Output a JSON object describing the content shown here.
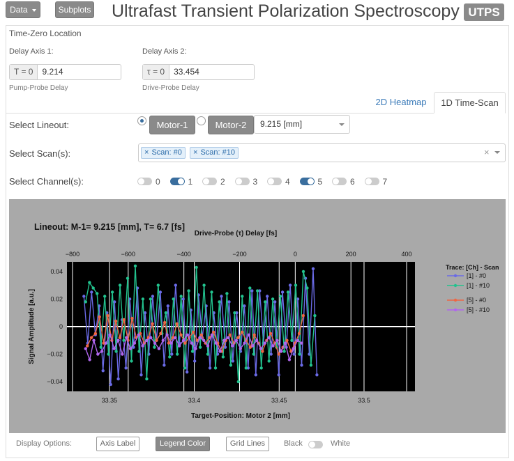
{
  "header": {
    "data_btn": "Data",
    "subplots_btn": "Subplots",
    "title": "Ultrafast Transient Polarization Spectroscopy",
    "badge": "UTPS"
  },
  "timezero": {
    "heading": "Time-Zero Location",
    "axis1": {
      "label": "Delay Axis 1:",
      "addon": "T = 0",
      "value": "9.214",
      "help": "Pump-Probe Delay"
    },
    "axis2": {
      "label": "Delay Axis 2:",
      "addon": "τ = 0",
      "value": "33.454",
      "help": "Drive-Probe Delay"
    }
  },
  "tabs": [
    {
      "label": "2D Heatmap",
      "active": false
    },
    {
      "label": "1D Time-Scan",
      "active": true
    }
  ],
  "lineout": {
    "label": "Select Lineout:",
    "motor1": "Motor-1",
    "motor2": "Motor-2",
    "selected_motor": 1,
    "position": "9.215 [mm]"
  },
  "scans": {
    "label": "Select Scan(s):",
    "tags": [
      "Scan: #0",
      "Scan: #10"
    ],
    "clear_symbol": "×"
  },
  "channels": {
    "label": "Select Channel(s):",
    "items": [
      {
        "n": "0",
        "on": false
      },
      {
        "n": "1",
        "on": true
      },
      {
        "n": "2",
        "on": false
      },
      {
        "n": "3",
        "on": false
      },
      {
        "n": "4",
        "on": false
      },
      {
        "n": "5",
        "on": true
      },
      {
        "n": "6",
        "on": false
      },
      {
        "n": "7",
        "on": false
      }
    ]
  },
  "display": {
    "label": "Display Options:",
    "axis_label": "Axis Label",
    "legend_color": "Legend Color",
    "grid_lines": "Grid Lines",
    "black": "Black",
    "white": "White"
  },
  "colors": {
    "ch1_scan0": "#6a6ae6",
    "ch1_scan10": "#22c28e",
    "ch5_scan0": "#ee6644",
    "ch5_scan10": "#b066ee"
  },
  "chart_data": {
    "type": "line",
    "title": "Lineout: M-1= 9.215 [mm], T= 6.7 [fs]",
    "xlabel": "Target-Position: Motor 2 [mm]",
    "x2label": "Drive-Probe (τ) Delay [fs]",
    "ylabel": "Signal Amplitude [a.u.]",
    "xlim": [
      33.325,
      33.53
    ],
    "ylim": [
      -0.047,
      0.047
    ],
    "x2lim": [
      -820,
      430
    ],
    "xticks": [
      33.35,
      33.4,
      33.45,
      33.5
    ],
    "x2ticks": [
      -800,
      -600,
      -400,
      -200,
      0,
      200,
      400
    ],
    "yticks": [
      0.04,
      0.02,
      0,
      -0.02,
      -0.04
    ],
    "grid": true,
    "legend_title": "Trace: [Ch] - Scan",
    "series": [
      {
        "name": "[1]  -  #0",
        "color": "#6a6ae6",
        "x_start": 33.335,
        "x_step": 0.00225,
        "values": [
          0.022,
          -0.012,
          0.025,
          -0.006,
          0.015,
          -0.032,
          0.01,
          -0.042,
          0.018,
          -0.038,
          0.005,
          -0.03,
          0.02,
          -0.015,
          0.028,
          -0.035,
          0.01,
          -0.02,
          0.022,
          -0.01,
          0.025,
          -0.028,
          0.015,
          -0.02,
          0.03,
          -0.012,
          0.02,
          -0.033,
          0.012,
          -0.025,
          0.023,
          -0.008,
          0.015,
          -0.03,
          0.01,
          -0.02,
          0.022,
          -0.015,
          0.018,
          -0.025,
          0.01,
          -0.018,
          0.015,
          -0.03,
          0.026,
          -0.035,
          0.026,
          -0.012,
          0.022,
          -0.02,
          0.018,
          -0.035,
          0.025,
          -0.015,
          0.03,
          -0.02,
          0.02,
          -0.028,
          0.035,
          -0.02,
          0.042,
          -0.035
        ]
      },
      {
        "name": "[1]  -  #10",
        "color": "#22c28e",
        "x_start": 33.336,
        "x_step": 0.00225,
        "values": [
          0.018,
          0.032,
          0.028,
          0.024,
          -0.015,
          0.022,
          -0.02,
          0.025,
          -0.018,
          0.03,
          -0.01,
          0.035,
          -0.025,
          0.044,
          -0.018,
          0.02,
          -0.038,
          0.02,
          -0.015,
          0.03,
          -0.005,
          0.01,
          -0.022,
          0.02,
          -0.02,
          0.022,
          -0.03,
          0.026,
          -0.018,
          0.043,
          -0.015,
          0.03,
          -0.02,
          0.025,
          -0.03,
          0.018,
          -0.022,
          0.024,
          -0.028,
          0.01,
          -0.04,
          0.022,
          -0.03,
          0.028,
          -0.02,
          0.026,
          -0.03,
          0.018,
          -0.025,
          0.02,
          -0.015,
          0.022,
          -0.018,
          0.025,
          -0.01,
          0.03,
          -0.02,
          0.04,
          0.028,
          -0.028,
          0.008
        ]
      },
      {
        "name": "[5]  -  #0",
        "color": "#ee6644",
        "x_start": 33.337,
        "x_step": 0.0024,
        "values": [
          -0.014,
          -0.008,
          -0.005,
          0.007,
          -0.012,
          0.008,
          -0.01,
          0.004,
          -0.008,
          0.005,
          -0.01,
          0.006,
          -0.008,
          -0.005,
          -0.012,
          -0.008,
          0.002,
          -0.01,
          -0.005,
          0.003,
          -0.012,
          -0.008,
          0.002,
          -0.006,
          -0.012,
          -0.008,
          -0.004,
          -0.01,
          -0.006,
          -0.012,
          -0.008,
          -0.004,
          -0.012,
          -0.018,
          -0.01,
          -0.006,
          -0.012,
          -0.008,
          -0.004,
          -0.01,
          -0.015,
          -0.006,
          -0.012,
          -0.018,
          -0.01,
          -0.005,
          -0.012,
          -0.02,
          -0.015,
          -0.01,
          -0.018,
          -0.012,
          -0.005,
          0.008
        ]
      },
      {
        "name": "[5]  -  #10",
        "color": "#b066ee",
        "x_start": 33.336,
        "x_step": 0.0024,
        "values": [
          -0.016,
          -0.024,
          -0.01,
          -0.02,
          -0.018,
          -0.012,
          -0.006,
          -0.016,
          -0.01,
          -0.02,
          -0.008,
          -0.016,
          -0.012,
          -0.006,
          -0.014,
          -0.01,
          -0.008,
          -0.012,
          -0.016,
          -0.01,
          -0.006,
          -0.012,
          -0.008,
          -0.014,
          -0.01,
          -0.006,
          -0.012,
          -0.016,
          -0.008,
          -0.01,
          -0.014,
          -0.006,
          -0.012,
          -0.018,
          -0.01,
          -0.008,
          -0.014,
          -0.01,
          -0.016,
          -0.012,
          -0.006,
          -0.014,
          -0.01,
          -0.016,
          -0.012,
          -0.008,
          -0.014,
          -0.01,
          -0.018,
          -0.012,
          -0.024,
          -0.016,
          -0.01,
          -0.012
        ]
      }
    ]
  }
}
